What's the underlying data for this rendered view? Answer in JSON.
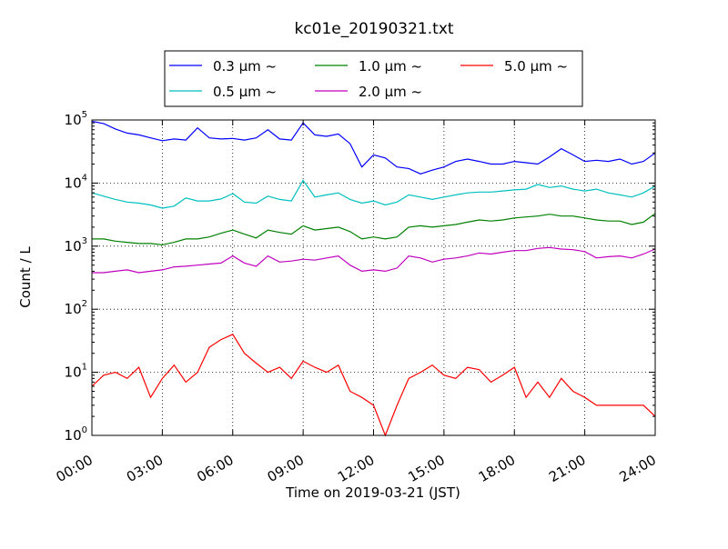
{
  "chart_data": {
    "type": "line",
    "title": "kc01e_20190321.txt",
    "xlabel": "Time on 2019-03-21 (JST)",
    "ylabel": "Count / L",
    "y_scale": "log",
    "ylim": [
      1,
      100000
    ],
    "xlim_hours": [
      0,
      24
    ],
    "grid": true,
    "legend_placement": "top-center",
    "x_tick_labels": [
      "00:00",
      "03:00",
      "06:00",
      "09:00",
      "12:00",
      "15:00",
      "18:00",
      "21:00",
      "24:00"
    ],
    "y_tick_labels": [
      {
        "value": 1,
        "base": "10",
        "exp": "0"
      },
      {
        "value": 10,
        "base": "10",
        "exp": "1"
      },
      {
        "value": 100,
        "base": "10",
        "exp": "2"
      },
      {
        "value": 1000,
        "base": "10",
        "exp": "3"
      },
      {
        "value": 10000,
        "base": "10",
        "exp": "4"
      },
      {
        "value": 100000,
        "base": "10",
        "exp": "5"
      }
    ],
    "x_hours": [
      0,
      0.5,
      1,
      1.5,
      2,
      2.5,
      3,
      3.5,
      4,
      4.5,
      5,
      5.5,
      6,
      6.5,
      7,
      7.5,
      8,
      8.5,
      9,
      9.5,
      10,
      10.5,
      11,
      11.5,
      12,
      12.5,
      13,
      13.5,
      14,
      14.5,
      15,
      15.5,
      16,
      16.5,
      17,
      17.5,
      18,
      18.5,
      19,
      19.5,
      20,
      20.5,
      21,
      21.5,
      22,
      22.5,
      23,
      23.5,
      24
    ],
    "series": [
      {
        "name": "0.3 μm ~",
        "color": "#0000ff",
        "values": [
          95000,
          88000,
          72000,
          62000,
          58000,
          52000,
          47000,
          50000,
          48000,
          75000,
          52000,
          50000,
          51000,
          48000,
          52000,
          70000,
          50000,
          48000,
          90000,
          58000,
          55000,
          60000,
          42000,
          18000,
          28000,
          25000,
          18000,
          17000,
          14000,
          16000,
          18000,
          22000,
          24000,
          22000,
          20000,
          20000,
          22000,
          21000,
          20000,
          26000,
          35000,
          28000,
          22000,
          23000,
          22000,
          24000,
          20000,
          22000,
          30000
        ]
      },
      {
        "name": "0.5 μm ~",
        "color": "#00bfbf",
        "values": [
          7000,
          6200,
          5500,
          5000,
          4800,
          4500,
          4000,
          4300,
          5800,
          5200,
          5200,
          5600,
          6800,
          5000,
          4800,
          6200,
          5500,
          5200,
          11000,
          6000,
          6500,
          7000,
          5500,
          4800,
          5200,
          4500,
          5000,
          6500,
          6000,
          5500,
          6000,
          6500,
          7000,
          7200,
          7200,
          7500,
          7800,
          8000,
          9500,
          8500,
          9000,
          8000,
          7500,
          8000,
          7000,
          6500,
          6000,
          7000,
          9000
        ]
      },
      {
        "name": "1.0 μm ~",
        "color": "#008000",
        "values": [
          1300,
          1300,
          1200,
          1150,
          1100,
          1100,
          1050,
          1150,
          1300,
          1300,
          1400,
          1600,
          1800,
          1550,
          1350,
          1800,
          1650,
          1550,
          2100,
          1800,
          1900,
          2000,
          1700,
          1300,
          1400,
          1300,
          1400,
          2000,
          2100,
          2000,
          2100,
          2200,
          2400,
          2600,
          2500,
          2600,
          2800,
          2900,
          3000,
          3200,
          3000,
          3000,
          2800,
          2600,
          2500,
          2500,
          2200,
          2400,
          3300
        ]
      },
      {
        "name": "2.0 μm ~",
        "color": "#bf00bf",
        "values": [
          380,
          380,
          400,
          420,
          380,
          400,
          420,
          470,
          480,
          500,
          520,
          540,
          700,
          540,
          480,
          700,
          560,
          580,
          620,
          600,
          650,
          700,
          500,
          400,
          420,
          400,
          450,
          700,
          650,
          560,
          620,
          650,
          700,
          780,
          750,
          800,
          850,
          850,
          920,
          950,
          900,
          880,
          820,
          650,
          680,
          700,
          650,
          750,
          900
        ]
      },
      {
        "name": "5.0 μm ~",
        "color": "#ff0000",
        "values": [
          6,
          9,
          10,
          8,
          12,
          4,
          8,
          13,
          7,
          10,
          25,
          33,
          40,
          20,
          14,
          10,
          12,
          8,
          15,
          12,
          10,
          13,
          5,
          4,
          3,
          1,
          3,
          8,
          10,
          13,
          9,
          8,
          12,
          11,
          7,
          9,
          12,
          4,
          7,
          4,
          8,
          5,
          4,
          3,
          3,
          3,
          3,
          3,
          2
        ]
      }
    ]
  }
}
